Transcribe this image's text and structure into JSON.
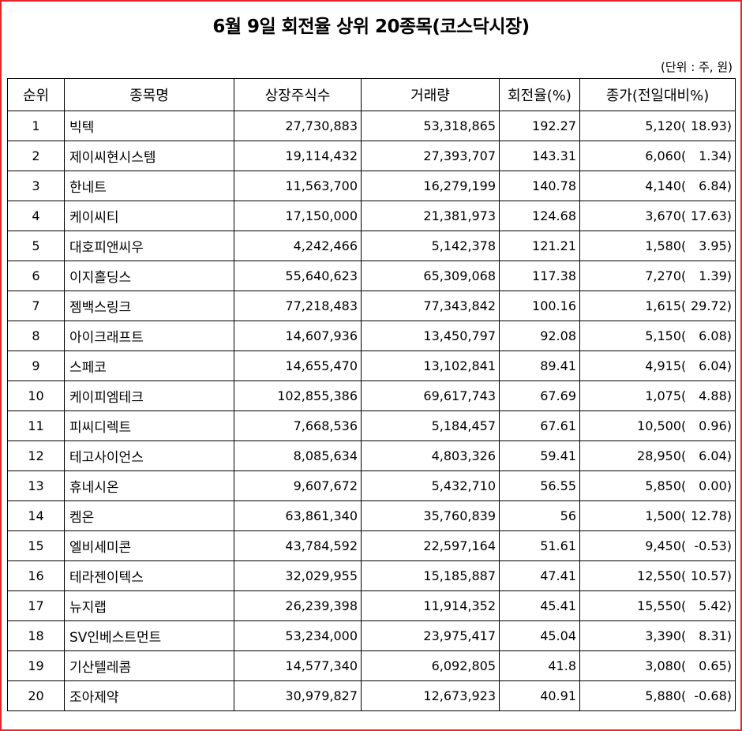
{
  "title": "6월 9일 회전율 상위 20종목(코스닥시장)",
  "unit": "(단위 : 주, 원)",
  "headers": {
    "rank": "순위",
    "name": "종목명",
    "listed_shares": "상장주식수",
    "volume": "거래량",
    "turnover": "회전율(%)",
    "close": "종가(전일대비%)"
  },
  "rows": [
    {
      "rank": "1",
      "name": "빅텍",
      "listed": "27,730,883",
      "volume": "53,318,865",
      "turnover": "192.27",
      "close": "5,120",
      "paren": "(",
      "change": "18.93)"
    },
    {
      "rank": "2",
      "name": "제이씨현시스템",
      "listed": "19,114,432",
      "volume": "27,393,707",
      "turnover": "143.31",
      "close": "6,060",
      "paren": "(",
      "change": "1.34)"
    },
    {
      "rank": "3",
      "name": "한네트",
      "listed": "11,563,700",
      "volume": "16,279,199",
      "turnover": "140.78",
      "close": "4,140",
      "paren": "(",
      "change": "6.84)"
    },
    {
      "rank": "4",
      "name": "케이씨티",
      "listed": "17,150,000",
      "volume": "21,381,973",
      "turnover": "124.68",
      "close": "3,670",
      "paren": "(",
      "change": "17.63)"
    },
    {
      "rank": "5",
      "name": "대호피앤씨우",
      "listed": "4,242,466",
      "volume": "5,142,378",
      "turnover": "121.21",
      "close": "1,580",
      "paren": "(",
      "change": "3.95)"
    },
    {
      "rank": "6",
      "name": "이지홀딩스",
      "listed": "55,640,623",
      "volume": "65,309,068",
      "turnover": "117.38",
      "close": "7,270",
      "paren": "(",
      "change": "1.39)"
    },
    {
      "rank": "7",
      "name": "젬백스링크",
      "listed": "77,218,483",
      "volume": "77,343,842",
      "turnover": "100.16",
      "close": "1,615",
      "paren": "(",
      "change": "29.72)"
    },
    {
      "rank": "8",
      "name": "아이크래프트",
      "listed": "14,607,936",
      "volume": "13,450,797",
      "turnover": "92.08",
      "close": "5,150",
      "paren": "(",
      "change": "6.08)"
    },
    {
      "rank": "9",
      "name": "스페코",
      "listed": "14,655,470",
      "volume": "13,102,841",
      "turnover": "89.41",
      "close": "4,915",
      "paren": "(",
      "change": "6.04)"
    },
    {
      "rank": "10",
      "name": "케이피엠테크",
      "listed": "102,855,386",
      "volume": "69,617,743",
      "turnover": "67.69",
      "close": "1,075",
      "paren": "(",
      "change": "4.88)"
    },
    {
      "rank": "11",
      "name": "피씨디렉트",
      "listed": "7,668,536",
      "volume": "5,184,457",
      "turnover": "67.61",
      "close": "10,500",
      "paren": "(",
      "change": "0.96)"
    },
    {
      "rank": "12",
      "name": "테고사이언스",
      "listed": "8,085,634",
      "volume": "4,803,326",
      "turnover": "59.41",
      "close": "28,950",
      "paren": "(",
      "change": "6.04)"
    },
    {
      "rank": "13",
      "name": "휴네시온",
      "listed": "9,607,672",
      "volume": "5,432,710",
      "turnover": "56.55",
      "close": "5,850",
      "paren": "(",
      "change": "0.00)"
    },
    {
      "rank": "14",
      "name": "켐온",
      "listed": "63,861,340",
      "volume": "35,760,839",
      "turnover": "56",
      "close": "1,500",
      "paren": "(",
      "change": "12.78)"
    },
    {
      "rank": "15",
      "name": "엘비세미콘",
      "listed": "43,784,592",
      "volume": "22,597,164",
      "turnover": "51.61",
      "close": "9,450",
      "paren": "(",
      "change": "-0.53)"
    },
    {
      "rank": "16",
      "name": "테라젠이텍스",
      "listed": "32,029,955",
      "volume": "15,185,887",
      "turnover": "47.41",
      "close": "12,550",
      "paren": "(",
      "change": "10.57)"
    },
    {
      "rank": "17",
      "name": "뉴지랩",
      "listed": "26,239,398",
      "volume": "11,914,352",
      "turnover": "45.41",
      "close": "15,550",
      "paren": "(",
      "change": "5.42)"
    },
    {
      "rank": "18",
      "name": "SV인베스트먼트",
      "listed": "53,234,000",
      "volume": "23,975,417",
      "turnover": "45.04",
      "close": "3,390",
      "paren": "(",
      "change": "8.31)"
    },
    {
      "rank": "19",
      "name": "기산텔레콤",
      "listed": "14,577,340",
      "volume": "6,092,805",
      "turnover": "41.8",
      "close": "3,080",
      "paren": "(",
      "change": "0.65)"
    },
    {
      "rank": "20",
      "name": "조아제약",
      "listed": "30,979,827",
      "volume": "12,673,923",
      "turnover": "40.91",
      "close": "5,880",
      "paren": "(",
      "change": "-0.68)"
    }
  ]
}
